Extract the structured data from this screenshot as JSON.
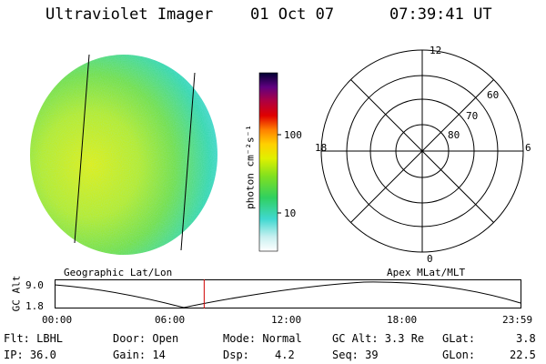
{
  "header": {
    "instrument": "Ultraviolet Imager",
    "date": "01 Oct 07",
    "time": "07:39:41 UT"
  },
  "colorbar": {
    "unit": "photon cm⁻²s⁻¹",
    "ticks": [
      "100",
      "10"
    ]
  },
  "polar_plot": {
    "mlt_labels": {
      "top": "12",
      "left": "18",
      "right": "6",
      "bottom": "0"
    },
    "lat_labels": [
      "60",
      "70",
      "80"
    ]
  },
  "orbit": {
    "left_title": "Geographic Lat/Lon",
    "right_title": "Apex MLat/MLT",
    "axis_label": "GC Alt",
    "y_ticks": [
      "9.0",
      "1.8"
    ],
    "x_ticks": [
      "00:00",
      "06:00",
      "12:00",
      "18:00",
      "23:59"
    ],
    "current_time_fraction": 0.321
  },
  "info": {
    "flt": "Flt: LBHL",
    "ip": "IP: 36.0",
    "door": "Door: Open",
    "gain": "Gain: 14",
    "mode": "Mode: Normal",
    "dsp_label": "Dsp:",
    "dsp_value": "4.2",
    "gcalt": "GC Alt: 3.3 Re",
    "seq": "Seq: 39",
    "glat_label": "GLat:",
    "glat_value": "3.8",
    "glon_label": "GLon:",
    "glon_value": "22.5"
  }
}
